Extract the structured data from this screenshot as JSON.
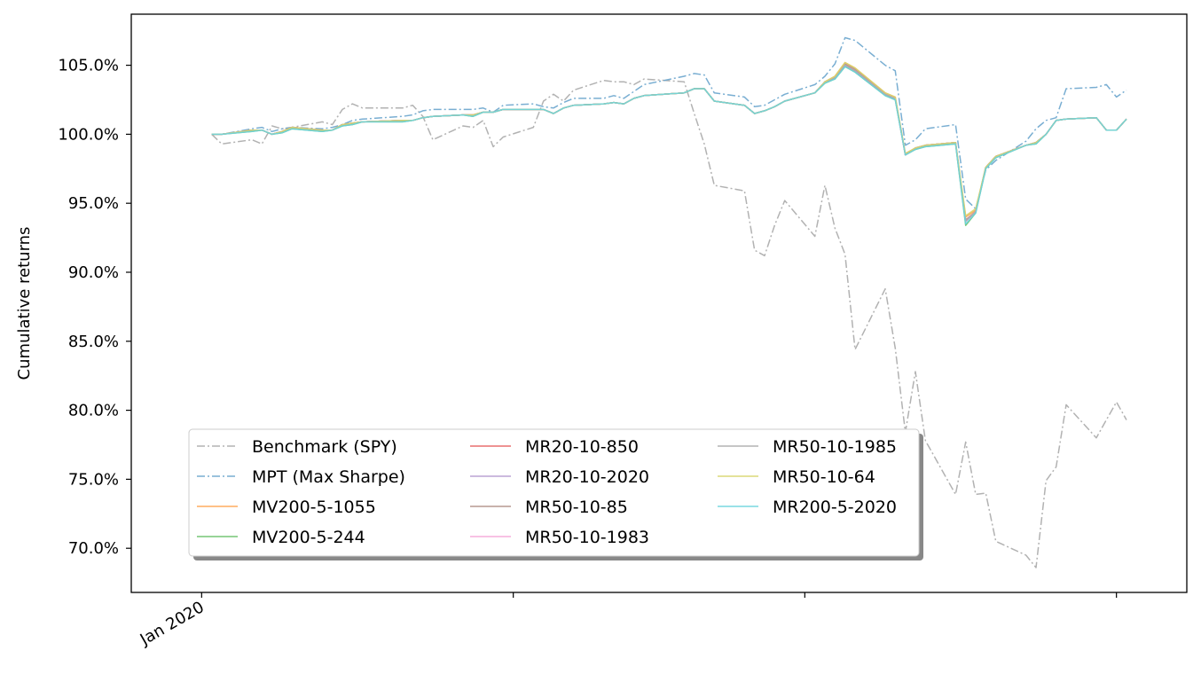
{
  "chart_data": {
    "type": "line",
    "title": "",
    "xlabel": "",
    "ylabel": "Cumulative returns",
    "xlim": [
      "2019-12-25",
      "2020-04-08"
    ],
    "ylim": [
      66.8,
      108.7
    ],
    "y_tick_values": [
      70,
      75,
      80,
      85,
      90,
      95,
      100,
      105
    ],
    "y_tick_labels": [
      "70.0%",
      "75.0%",
      "80.0%",
      "85.0%",
      "90.0%",
      "95.0%",
      "100.0%",
      "105.0%"
    ],
    "x_ticks": [
      {
        "date": "2020-01-01",
        "label": "Jan 2020"
      },
      {
        "date": "2020-02-01",
        "label": ""
      },
      {
        "date": "2020-03-01",
        "label": ""
      },
      {
        "date": "2020-04-01",
        "label": ""
      }
    ],
    "grid": false,
    "legend": {
      "location": "lower-left",
      "columns": 3
    },
    "dates": [
      "2020-01-02",
      "2020-01-03",
      "2020-01-06",
      "2020-01-07",
      "2020-01-08",
      "2020-01-09",
      "2020-01-10",
      "2020-01-13",
      "2020-01-14",
      "2020-01-15",
      "2020-01-16",
      "2020-01-17",
      "2020-01-21",
      "2020-01-22",
      "2020-01-23",
      "2020-01-24",
      "2020-01-27",
      "2020-01-28",
      "2020-01-29",
      "2020-01-30",
      "2020-01-31",
      "2020-02-03",
      "2020-02-04",
      "2020-02-05",
      "2020-02-06",
      "2020-02-07",
      "2020-02-10",
      "2020-02-11",
      "2020-02-12",
      "2020-02-13",
      "2020-02-14",
      "2020-02-18",
      "2020-02-19",
      "2020-02-20",
      "2020-02-21",
      "2020-02-24",
      "2020-02-25",
      "2020-02-26",
      "2020-02-27",
      "2020-02-28",
      "2020-03-02",
      "2020-03-03",
      "2020-03-04",
      "2020-03-05",
      "2020-03-06",
      "2020-03-09",
      "2020-03-10",
      "2020-03-11",
      "2020-03-12",
      "2020-03-13",
      "2020-03-16",
      "2020-03-17",
      "2020-03-18",
      "2020-03-19",
      "2020-03-20",
      "2020-03-23",
      "2020-03-24",
      "2020-03-25",
      "2020-03-26",
      "2020-03-27",
      "2020-03-30",
      "2020-03-31",
      "2020-04-01",
      "2020-04-02"
    ],
    "series": [
      {
        "name": "Benchmark (SPY)",
        "color": "#aaaaaa",
        "dash": "dashdot",
        "values": [
          100.0,
          99.3,
          99.6,
          99.3,
          100.6,
          100.4,
          100.5,
          100.9,
          100.7,
          101.8,
          102.2,
          101.9,
          101.9,
          102.1,
          101.3,
          99.6,
          100.6,
          100.5,
          101.0,
          99.1,
          99.8,
          100.5,
          102.4,
          102.9,
          102.4,
          103.2,
          103.9,
          103.8,
          103.8,
          103.6,
          104.0,
          103.8,
          101.5,
          99.3,
          96.3,
          95.9,
          91.6,
          91.2,
          93.4,
          95.2,
          92.6,
          96.3,
          93.2,
          91.3,
          84.4,
          88.8,
          84.5,
          78.4,
          82.8,
          77.8,
          73.9,
          77.7,
          73.9,
          74.0,
          70.5,
          69.5,
          68.6,
          74.9,
          75.9,
          80.4,
          78.0,
          79.3,
          80.6,
          79.3
        ]
      },
      {
        "name": "MPT (Max Sharpe)",
        "color": "#6aa5cd",
        "dash": "dashdot",
        "values": [
          100.0,
          100.0,
          100.4,
          100.5,
          100.2,
          100.4,
          100.5,
          100.4,
          100.5,
          100.7,
          101.0,
          101.1,
          101.3,
          101.4,
          101.7,
          101.8,
          101.8,
          101.8,
          101.9,
          101.6,
          102.1,
          102.2,
          102.0,
          101.9,
          102.3,
          102.6,
          102.6,
          102.8,
          102.6,
          103.1,
          103.6,
          104.2,
          104.4,
          104.3,
          103.0,
          102.7,
          102.0,
          102.1,
          102.5,
          102.9,
          103.6,
          104.2,
          105.1,
          107.0,
          106.8,
          105.0,
          104.6,
          99.2,
          99.6,
          100.4,
          100.7,
          95.3,
          94.6,
          97.4,
          98.1,
          99.5,
          100.4,
          101.0,
          101.2,
          103.3,
          103.4,
          103.6,
          102.7,
          103.2
        ]
      },
      {
        "name": "MV200-5-1055",
        "color": "#ffa44e",
        "dash": "solid",
        "values": [
          100.0,
          100.0,
          100.3,
          100.3,
          100.0,
          100.2,
          100.5,
          100.3,
          100.3,
          100.7,
          100.8,
          100.9,
          101.0,
          101.0,
          101.2,
          101.3,
          101.4,
          101.4,
          101.6,
          101.6,
          101.8,
          101.8,
          101.8,
          101.5,
          101.9,
          102.1,
          102.2,
          102.3,
          102.2,
          102.6,
          102.8,
          103.0,
          103.3,
          103.3,
          102.4,
          102.1,
          101.5,
          101.7,
          102.0,
          102.4,
          103.0,
          103.8,
          104.2,
          105.2,
          104.8,
          103.0,
          102.7,
          98.6,
          99.0,
          99.2,
          99.4,
          94.0,
          94.5,
          97.6,
          98.4,
          99.2,
          99.4,
          100.0,
          101.0,
          101.1,
          101.2,
          100.3,
          100.3,
          101.1
        ]
      },
      {
        "name": "MV200-5-244",
        "color": "#66bf66",
        "dash": "solid",
        "values": [
          100.0,
          100.0,
          100.2,
          100.3,
          100.0,
          100.1,
          100.4,
          100.2,
          100.3,
          100.6,
          100.7,
          100.9,
          100.9,
          101.0,
          101.2,
          101.3,
          101.4,
          101.3,
          101.6,
          101.6,
          101.8,
          101.8,
          101.8,
          101.5,
          101.9,
          102.1,
          102.2,
          102.3,
          102.2,
          102.6,
          102.8,
          103.0,
          103.3,
          103.3,
          102.4,
          102.1,
          101.5,
          101.7,
          102.0,
          102.4,
          103.0,
          103.7,
          104.0,
          104.9,
          104.5,
          102.8,
          102.5,
          98.5,
          98.9,
          99.1,
          99.3,
          93.4,
          94.3,
          97.5,
          98.3,
          99.2,
          99.3,
          100.0,
          101.0,
          101.1,
          101.2,
          100.3,
          100.3,
          101.1
        ]
      },
      {
        "name": "MR20-10-850",
        "color": "#e55f5f",
        "dash": "solid",
        "values": [
          100.0,
          100.0,
          100.3,
          100.3,
          100.0,
          100.2,
          100.5,
          100.3,
          100.3,
          100.7,
          100.8,
          100.9,
          101.0,
          101.0,
          101.2,
          101.3,
          101.4,
          101.4,
          101.6,
          101.6,
          101.8,
          101.8,
          101.8,
          101.5,
          101.9,
          102.1,
          102.2,
          102.3,
          102.2,
          102.6,
          102.8,
          103.0,
          103.3,
          103.3,
          102.4,
          102.1,
          101.5,
          101.7,
          102.0,
          102.4,
          103.0,
          103.8,
          104.1,
          105.0,
          104.6,
          102.9,
          102.6,
          98.5,
          99.0,
          99.2,
          99.4,
          93.7,
          94.4,
          97.6,
          98.4,
          99.2,
          99.4,
          100.0,
          101.0,
          101.1,
          101.2,
          100.3,
          100.3,
          101.1
        ]
      },
      {
        "name": "MR20-10-2020",
        "color": "#b398cf",
        "dash": "solid",
        "values": [
          100.0,
          100.0,
          100.3,
          100.3,
          100.0,
          100.2,
          100.5,
          100.3,
          100.3,
          100.7,
          100.8,
          100.9,
          101.0,
          101.0,
          101.2,
          101.3,
          101.4,
          101.4,
          101.6,
          101.6,
          101.8,
          101.8,
          101.8,
          101.5,
          101.9,
          102.1,
          102.2,
          102.3,
          102.2,
          102.6,
          102.8,
          103.0,
          103.3,
          103.3,
          102.4,
          102.1,
          101.5,
          101.7,
          102.0,
          102.4,
          103.0,
          103.8,
          104.1,
          105.0,
          104.6,
          102.9,
          102.6,
          98.5,
          99.0,
          99.2,
          99.4,
          93.7,
          94.4,
          97.6,
          98.4,
          99.2,
          99.4,
          100.0,
          101.0,
          101.1,
          101.2,
          100.3,
          100.3,
          101.1
        ]
      },
      {
        "name": "MR50-10-85",
        "color": "#b08d84",
        "dash": "solid",
        "values": [
          100.0,
          100.0,
          100.3,
          100.3,
          100.0,
          100.2,
          100.5,
          100.3,
          100.3,
          100.7,
          100.8,
          100.9,
          101.0,
          101.0,
          101.2,
          101.3,
          101.4,
          101.4,
          101.6,
          101.6,
          101.8,
          101.8,
          101.8,
          101.5,
          101.9,
          102.1,
          102.2,
          102.3,
          102.2,
          102.6,
          102.8,
          103.0,
          103.3,
          103.3,
          102.4,
          102.1,
          101.5,
          101.7,
          102.0,
          102.4,
          103.0,
          103.8,
          104.1,
          105.1,
          104.7,
          102.9,
          102.6,
          98.5,
          99.0,
          99.2,
          99.4,
          93.8,
          94.4,
          97.6,
          98.4,
          99.2,
          99.4,
          100.0,
          101.0,
          101.1,
          101.2,
          100.3,
          100.3,
          101.1
        ]
      },
      {
        "name": "MR50-10-1983",
        "color": "#f5a6d6",
        "dash": "solid",
        "values": [
          100.0,
          100.0,
          100.3,
          100.3,
          100.0,
          100.2,
          100.5,
          100.3,
          100.3,
          100.7,
          100.8,
          100.9,
          101.0,
          101.0,
          101.2,
          101.3,
          101.4,
          101.4,
          101.6,
          101.6,
          101.8,
          101.8,
          101.8,
          101.5,
          101.9,
          102.1,
          102.2,
          102.3,
          102.2,
          102.6,
          102.8,
          103.0,
          103.3,
          103.3,
          102.4,
          102.1,
          101.5,
          101.7,
          102.0,
          102.4,
          103.0,
          103.8,
          104.1,
          105.0,
          104.6,
          102.9,
          102.6,
          98.5,
          99.0,
          99.2,
          99.4,
          93.7,
          94.4,
          97.6,
          98.4,
          99.2,
          99.4,
          100.0,
          101.0,
          101.1,
          101.2,
          100.3,
          100.3,
          101.1
        ]
      },
      {
        "name": "MR50-10-1985",
        "color": "#aaaaaa",
        "dash": "solid",
        "values": [
          100.0,
          100.0,
          100.3,
          100.3,
          100.0,
          100.2,
          100.5,
          100.3,
          100.3,
          100.7,
          100.8,
          100.9,
          101.0,
          101.0,
          101.2,
          101.3,
          101.4,
          101.4,
          101.6,
          101.6,
          101.8,
          101.8,
          101.8,
          101.5,
          101.9,
          102.1,
          102.2,
          102.3,
          102.2,
          102.6,
          102.8,
          103.0,
          103.3,
          103.3,
          102.4,
          102.1,
          101.5,
          101.7,
          102.0,
          102.4,
          103.0,
          103.8,
          104.1,
          105.0,
          104.6,
          102.9,
          102.6,
          98.5,
          99.0,
          99.2,
          99.4,
          93.7,
          94.4,
          97.6,
          98.4,
          99.2,
          99.4,
          100.0,
          101.0,
          101.1,
          101.2,
          100.3,
          100.3,
          101.1
        ]
      },
      {
        "name": "MR50-10-64",
        "color": "#d8d36a",
        "dash": "solid",
        "values": [
          100.0,
          100.0,
          100.3,
          100.3,
          100.0,
          100.2,
          100.5,
          100.3,
          100.3,
          100.7,
          100.8,
          100.9,
          101.0,
          101.0,
          101.2,
          101.3,
          101.4,
          101.4,
          101.6,
          101.6,
          101.8,
          101.8,
          101.8,
          101.5,
          101.9,
          102.1,
          102.2,
          102.3,
          102.2,
          102.6,
          102.8,
          103.0,
          103.3,
          103.3,
          102.4,
          102.1,
          101.5,
          101.7,
          102.0,
          102.4,
          103.0,
          103.8,
          104.2,
          105.2,
          104.8,
          103.0,
          102.7,
          98.6,
          99.0,
          99.2,
          99.4,
          94.1,
          94.6,
          97.6,
          98.4,
          99.2,
          99.4,
          100.0,
          101.0,
          101.1,
          101.2,
          100.3,
          100.3,
          101.1
        ]
      },
      {
        "name": "MR200-5-2020",
        "color": "#6ad3de",
        "dash": "solid",
        "values": [
          100.0,
          100.0,
          100.2,
          100.3,
          100.0,
          100.1,
          100.4,
          100.2,
          100.3,
          100.6,
          100.7,
          100.9,
          100.9,
          101.0,
          101.2,
          101.3,
          101.4,
          101.3,
          101.6,
          101.6,
          101.8,
          101.8,
          101.8,
          101.5,
          101.9,
          102.1,
          102.2,
          102.3,
          102.2,
          102.6,
          102.8,
          103.0,
          103.3,
          103.3,
          102.4,
          102.1,
          101.5,
          101.7,
          102.0,
          102.4,
          103.0,
          103.7,
          104.0,
          104.9,
          104.5,
          102.8,
          102.5,
          98.5,
          98.9,
          99.1,
          99.3,
          93.5,
          94.3,
          97.5,
          98.3,
          99.2,
          99.3,
          100.0,
          101.0,
          101.1,
          101.2,
          100.3,
          100.3,
          101.1
        ]
      }
    ]
  }
}
